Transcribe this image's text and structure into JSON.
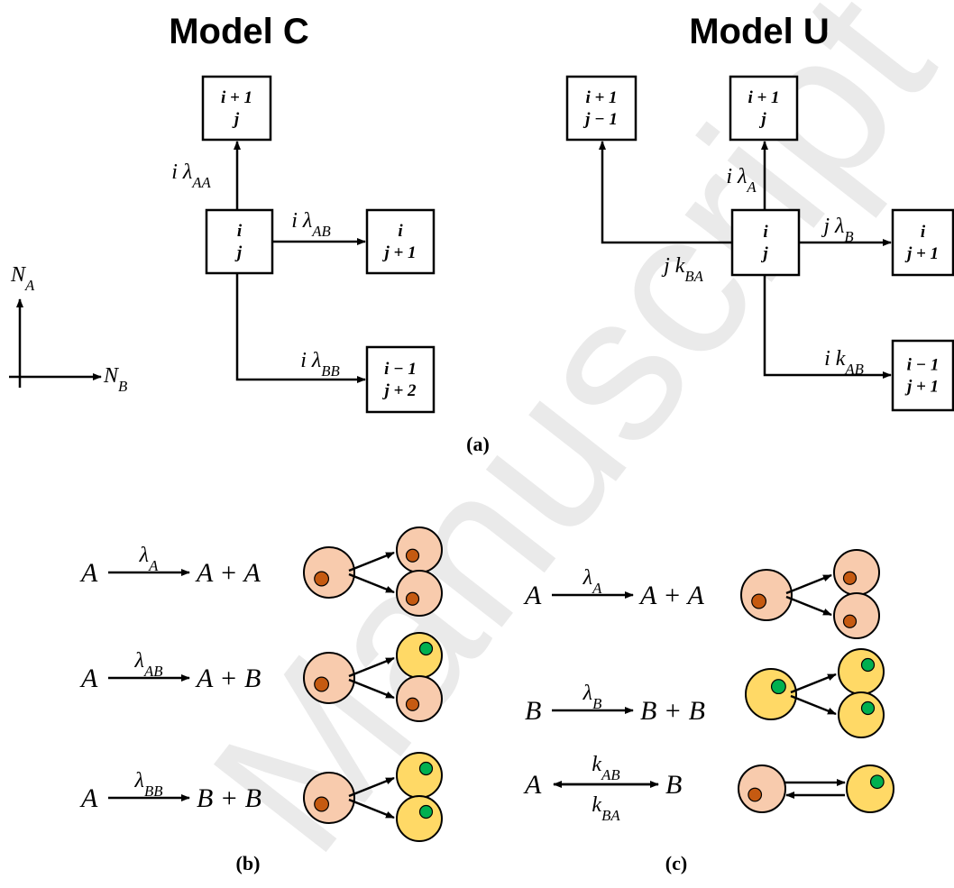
{
  "watermark": "Manuscript",
  "model_c": {
    "title": "Model C",
    "boxes": [
      {
        "lines": [
          "i + 1",
          "j"
        ]
      },
      {
        "lines": [
          "i",
          "j"
        ]
      },
      {
        "lines": [
          "i",
          "j + 1"
        ]
      },
      {
        "lines": [
          "i − 1",
          "j + 2"
        ]
      }
    ],
    "edges": [
      {
        "text": "i λ",
        "sub": "AA"
      },
      {
        "text": "i λ",
        "sub": "AB"
      },
      {
        "text": "i λ",
        "sub": "BB"
      }
    ]
  },
  "model_u": {
    "title": "Model U",
    "boxes": [
      {
        "lines": [
          "i + 1",
          "j − 1"
        ]
      },
      {
        "lines": [
          "i + 1",
          "j"
        ]
      },
      {
        "lines": [
          "i",
          "j"
        ]
      },
      {
        "lines": [
          "i",
          "j + 1"
        ]
      },
      {
        "lines": [
          "i − 1",
          "j + 1"
        ]
      }
    ],
    "edges": [
      {
        "text": "i λ",
        "sub": "A"
      },
      {
        "text": "j k",
        "sub": "BA"
      },
      {
        "text": "j λ",
        "sub": "B"
      },
      {
        "text": "i k",
        "sub": "AB"
      }
    ]
  },
  "axes": {
    "vertical": {
      "text": "N",
      "sub": "A"
    },
    "horizontal": {
      "text": "N",
      "sub": "B"
    }
  },
  "panel_labels": [
    "(a)",
    "(b)",
    "(c)"
  ],
  "panel_b": {
    "reactions": [
      {
        "reactant": "A",
        "rate": "λ",
        "sub": "A",
        "products": "A + A"
      },
      {
        "reactant": "A",
        "rate": "λ",
        "sub": "AB",
        "products": "A + B"
      },
      {
        "reactant": "A",
        "rate": "λ",
        "sub": "BB",
        "products": "B + B"
      }
    ]
  },
  "panel_c": {
    "reactions": [
      {
        "reactant": "A",
        "rate": "λ",
        "sub": "A",
        "products": "A + A"
      },
      {
        "reactant": "B",
        "rate": "λ",
        "sub": "B",
        "products": "B + B"
      }
    ],
    "exchange": {
      "left": "A",
      "right": "B",
      "forward_rate": "k",
      "forward_sub": "AB",
      "backward_rate": "k",
      "backward_sub": "BA"
    }
  }
}
